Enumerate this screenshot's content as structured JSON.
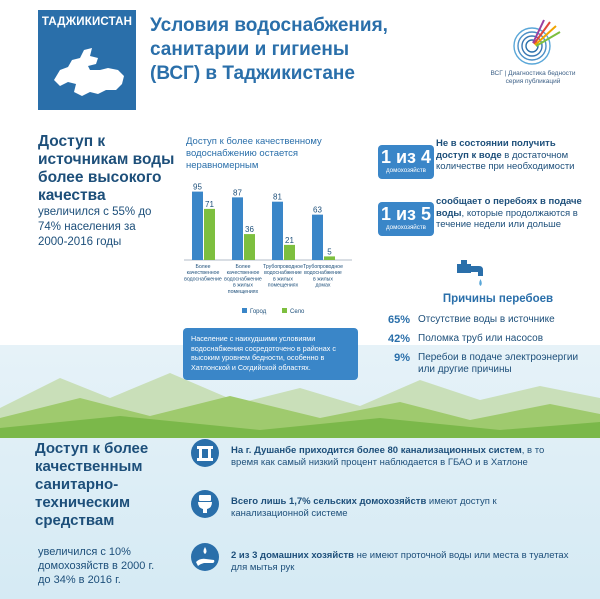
{
  "header": {
    "country": "ТАДЖИКИСТАН",
    "title_line1": "Условия водоснабжения,",
    "title_line2": "санитарии и гигиены",
    "title_line3": "(ВСГ) в Таджикистане",
    "logo_caption_line1": "ВСГ | Диагностика бедности",
    "logo_caption_line2": "серия публикаций"
  },
  "water_access": {
    "heading_line1": "Доступ к",
    "heading_line2": "источникам воды",
    "heading_line3": "более высокого",
    "heading_line4": "качества",
    "text_line1": "увеличился с 55% до",
    "text_line2": "74% населения за",
    "text_line3": "2000-2016 годы"
  },
  "chart_data": {
    "type": "bar",
    "title_line1": "Доступ к более качественному",
    "title_line2": "водоснабжению остается",
    "title_line3": "неравномерным",
    "categories": [
      [
        "Более",
        "качественное",
        "водоснабжение"
      ],
      [
        "Более",
        "качественное",
        "водоснабжение",
        "в жилых",
        "помещениях"
      ],
      [
        "Трубопроводное",
        "водоснабжение",
        "в жилых",
        "помещениях"
      ],
      [
        "Трубопроводное",
        "водоснабжение",
        "в жилых",
        "домах"
      ]
    ],
    "series": [
      {
        "name": "Город",
        "values": [
          95,
          87,
          81,
          63
        ],
        "color": "#3a86c8"
      },
      {
        "name": "Село",
        "values": [
          71,
          36,
          21,
          5
        ],
        "color": "#7dbf3f"
      }
    ],
    "ylim": [
      0,
      100
    ]
  },
  "note": "Население с наихудшими условиями водоснабжения сосредоточено в районах с высоким уровнем бедности, особенно в Хатлонской и Согдийской областях.",
  "stats": [
    {
      "num": "1 из 4",
      "sub": "домохозяйств",
      "bold": "Не в состоянии получить доступ к воде",
      "rest": " в достаточном количестве при необходимости"
    },
    {
      "num": "1 из 5",
      "sub": "домохозяйств",
      "bold": "сообщает о перебоях в подаче воды",
      "rest": ", которые продолжаются в течение недели или дольше"
    }
  ],
  "reasons": {
    "title": "Причины перебоев",
    "items": [
      {
        "pct": "65%",
        "text": "Отсутствие воды в источнике"
      },
      {
        "pct": "42%",
        "text": "Поломка труб или насосов"
      },
      {
        "pct": "9%",
        "text": "Перебои в подаче электроэнергии или другие причины"
      }
    ]
  },
  "sanitation": {
    "heading_line1": "Доступ к более",
    "heading_line2": "качественным",
    "heading_line3": "санитарно-",
    "heading_line4": "техническим",
    "heading_line5": "средствам",
    "text_line1": "увеличился с 10%",
    "text_line2": "домохозяйств в 2000 г.",
    "text_line3": "до 34% в 2016 г.",
    "facts": [
      {
        "bold": "На г. Душанбе приходится более 80 канализационных систем",
        "rest": ", в то время как самый низкий процент наблюдается в ГБАО и в Хатлоне"
      },
      {
        "bold": "Всего лишь 1,7% сельских домохозяйств",
        "rest": " имеют доступ к канализационной системе"
      },
      {
        "bold": "2 из 3 домашних хозяйств",
        "rest": " не имеют проточной воды или места в туалетах для мытья рук"
      }
    ]
  },
  "colors": {
    "blue": "#3a86c8",
    "dark_blue": "#1d4f7a",
    "green": "#7dbf3f",
    "header_blue": "#2a6faa"
  }
}
